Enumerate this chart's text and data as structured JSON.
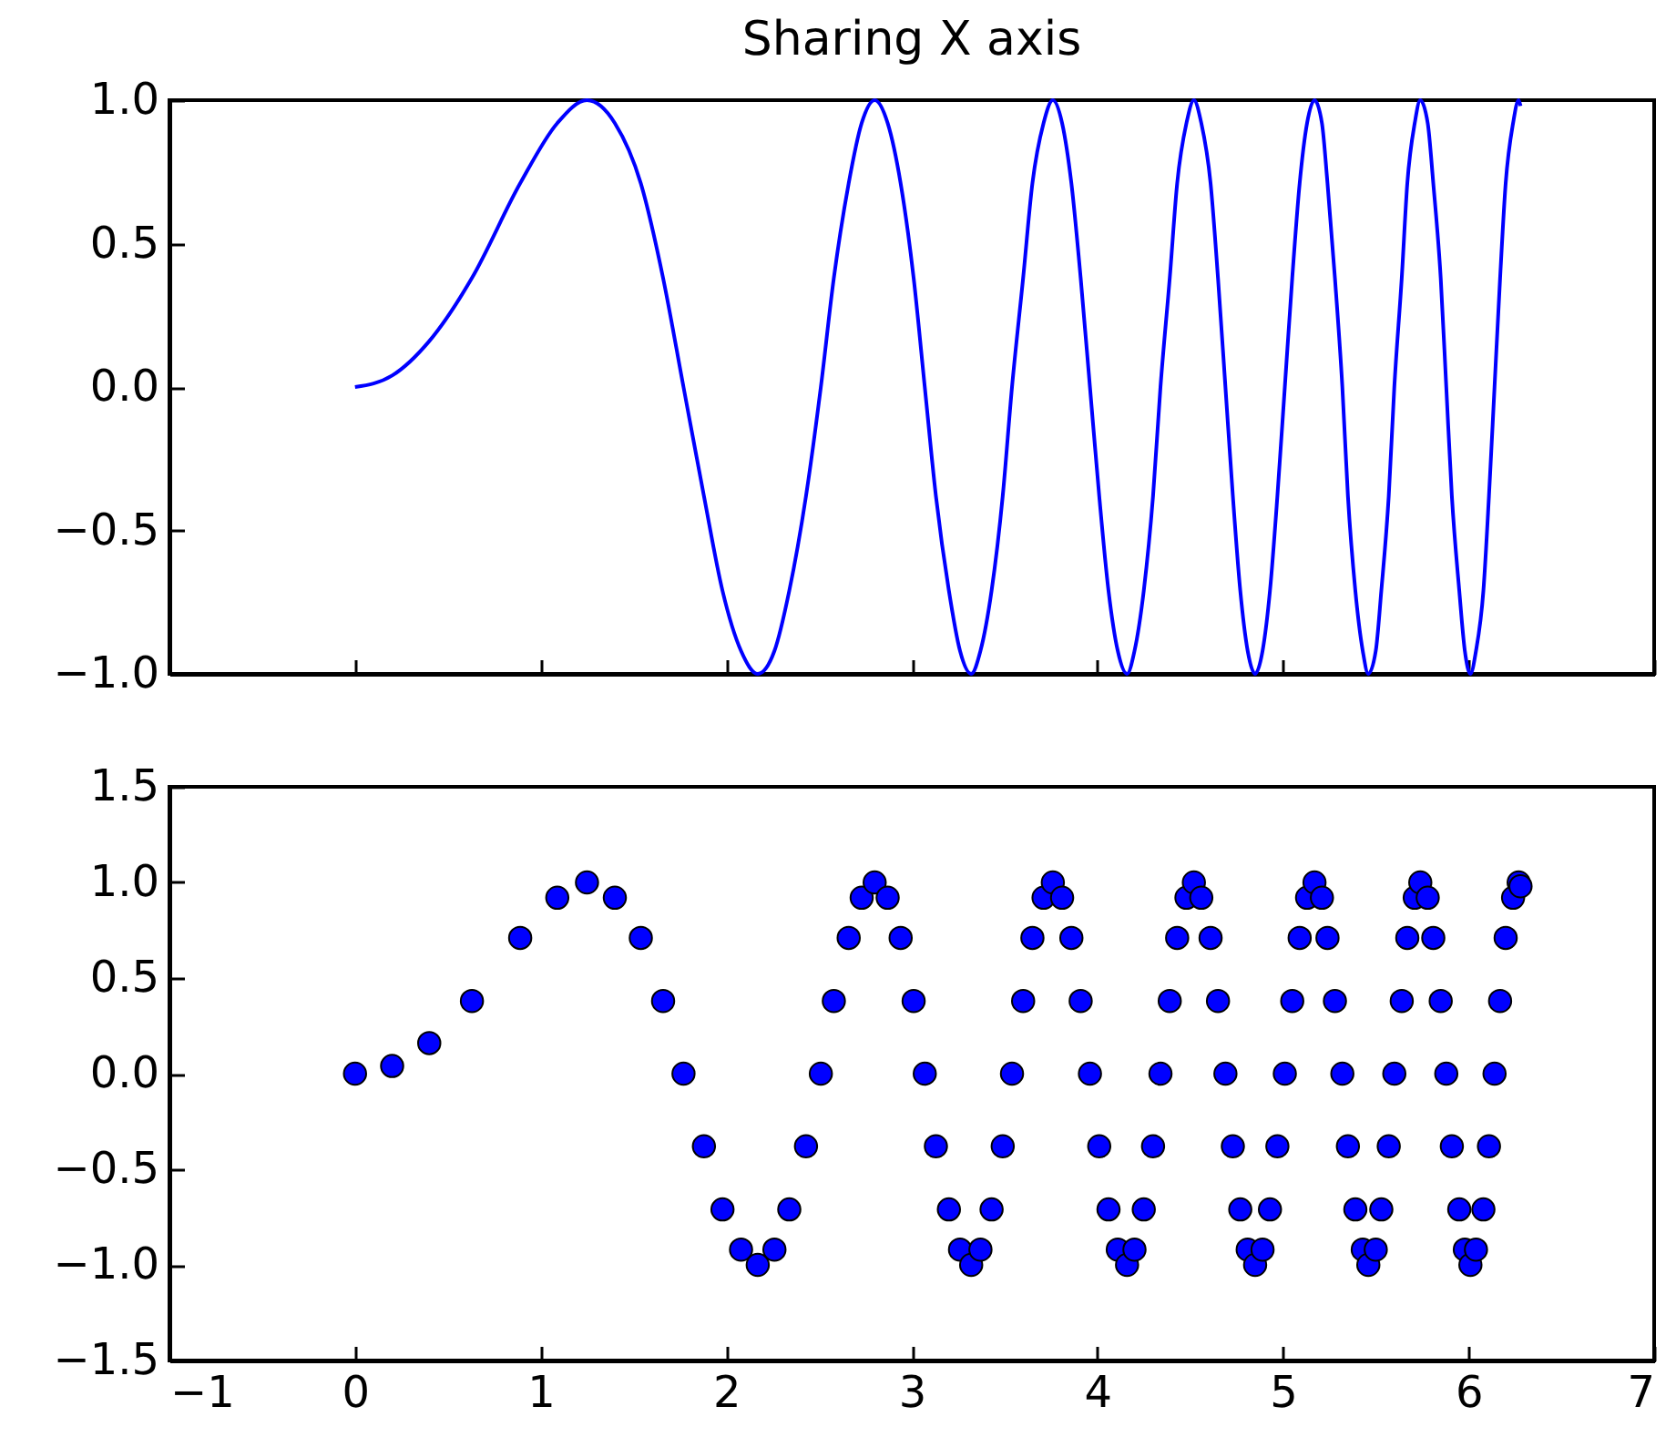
{
  "chart_data": [
    {
      "type": "line",
      "title": "Sharing X axis",
      "tick_labels": "y",
      "xlim": [
        -1,
        7
      ],
      "xticks": [
        -1,
        0,
        1,
        2,
        3,
        4,
        5,
        6,
        7
      ],
      "ylim": [
        -1,
        1
      ],
      "yticks": [
        {
          "value": -1,
          "label": "−1.0"
        },
        {
          "value": -0.5,
          "label": "−0.5"
        },
        {
          "value": 0,
          "label": "0.0"
        },
        {
          "value": 0.5,
          "label": "0.5"
        },
        {
          "value": 1,
          "label": "1.0"
        }
      ],
      "marker": "none",
      "line_style": "solid",
      "x": [
        0,
        0.2,
        0.4,
        0.63,
        0.89,
        1.09,
        1.25,
        1.4,
        1.54,
        1.66,
        1.77,
        1.88,
        1.98,
        2.08,
        2.17,
        2.26,
        2.34,
        2.43,
        2.51,
        2.58,
        2.66,
        2.73,
        2.8,
        2.87,
        2.94,
        3.01,
        3.07,
        3.13,
        3.2,
        3.26,
        3.32,
        3.37,
        3.43,
        3.49,
        3.54,
        3.6,
        3.65,
        3.71,
        3.76,
        3.81,
        3.86,
        3.91,
        3.96,
        4.01,
        4.06,
        4.11,
        4.16,
        4.2,
        4.25,
        4.3,
        4.34,
        4.39,
        4.43,
        4.48,
        4.52,
        4.56,
        4.61,
        4.65,
        4.69,
        4.73,
        4.77,
        4.81,
        4.85,
        4.89,
        4.93,
        4.97,
        5.01,
        5.05,
        5.09,
        5.13,
        5.17,
        5.21,
        5.24,
        5.28,
        5.32,
        5.35,
        5.39,
        5.43,
        5.46,
        5.5,
        5.53,
        5.57,
        5.6,
        5.64,
        5.67,
        5.71,
        5.74,
        5.78,
        5.81,
        5.85,
        5.88,
        5.91,
        5.95,
        5.98,
        6.01,
        6.04,
        6.08,
        6.11,
        6.14,
        6.17,
        6.2,
        6.24,
        6.27,
        6.28
      ],
      "series": [
        {
          "color": "#0000ff",
          "values": [
            0,
            0.04,
            0.16,
            0.38,
            0.71,
            0.92,
            1,
            0.92,
            0.71,
            0.38,
            0,
            -0.38,
            -0.71,
            -0.92,
            -1,
            -0.92,
            -0.71,
            -0.38,
            0,
            0.38,
            0.71,
            0.92,
            1,
            0.92,
            0.71,
            0.38,
            0,
            -0.38,
            -0.71,
            -0.92,
            -1,
            -0.92,
            -0.71,
            -0.38,
            0,
            0.38,
            0.71,
            0.92,
            1,
            0.92,
            0.71,
            0.38,
            0,
            -0.38,
            -0.71,
            -0.92,
            -1,
            -0.92,
            -0.71,
            -0.38,
            0,
            0.38,
            0.71,
            0.92,
            1,
            0.92,
            0.71,
            0.38,
            0,
            -0.38,
            -0.71,
            -0.92,
            -1,
            -0.92,
            -0.71,
            -0.38,
            0,
            0.38,
            0.71,
            0.92,
            1,
            0.92,
            0.71,
            0.38,
            0,
            -0.38,
            -0.71,
            -0.92,
            -1,
            -0.92,
            -0.71,
            -0.38,
            0,
            0.38,
            0.71,
            0.92,
            1,
            0.92,
            0.71,
            0.38,
            0,
            -0.38,
            -0.71,
            -0.92,
            -1,
            -0.92,
            -0.71,
            -0.38,
            0,
            0.38,
            0.71,
            0.92,
            1,
            0.98
          ]
        }
      ]
    },
    {
      "type": "scatter",
      "xlim": [
        -1,
        7
      ],
      "xticks": [
        {
          "value": -1,
          "label": "−1"
        },
        0,
        1,
        2,
        3,
        4,
        5,
        6,
        7
      ],
      "ylim": [
        -1.5,
        1.5
      ],
      "yticks": [
        {
          "value": -1.5,
          "label": "−1.5"
        },
        {
          "value": -1,
          "label": "−1.0"
        },
        {
          "value": -0.5,
          "label": "−0.5"
        },
        {
          "value": 0,
          "label": "0.0"
        },
        {
          "value": 0.5,
          "label": "0.5"
        },
        {
          "value": 1,
          "label": "1.0"
        },
        {
          "value": 1.5,
          "label": "1.5"
        }
      ],
      "marker": "circle",
      "x": [
        0,
        0.2,
        0.4,
        0.63,
        0.89,
        1.09,
        1.25,
        1.4,
        1.54,
        1.66,
        1.77,
        1.88,
        1.98,
        2.08,
        2.17,
        2.26,
        2.34,
        2.43,
        2.51,
        2.58,
        2.66,
        2.73,
        2.8,
        2.87,
        2.94,
        3.01,
        3.07,
        3.13,
        3.2,
        3.26,
        3.32,
        3.37,
        3.43,
        3.49,
        3.54,
        3.6,
        3.65,
        3.71,
        3.76,
        3.81,
        3.86,
        3.91,
        3.96,
        4.01,
        4.06,
        4.11,
        4.16,
        4.2,
        4.25,
        4.3,
        4.34,
        4.39,
        4.43,
        4.48,
        4.52,
        4.56,
        4.61,
        4.65,
        4.69,
        4.73,
        4.77,
        4.81,
        4.85,
        4.89,
        4.93,
        4.97,
        5.01,
        5.05,
        5.09,
        5.13,
        5.17,
        5.21,
        5.24,
        5.28,
        5.32,
        5.35,
        5.39,
        5.43,
        5.46,
        5.5,
        5.53,
        5.57,
        5.6,
        5.64,
        5.67,
        5.71,
        5.74,
        5.78,
        5.81,
        5.85,
        5.88,
        5.91,
        5.95,
        5.98,
        6.01,
        6.04,
        6.08,
        6.11,
        6.14,
        6.17,
        6.2,
        6.24,
        6.27,
        6.28
      ],
      "series": [
        {
          "color": "#0000ff",
          "values": [
            0,
            0.04,
            0.16,
            0.38,
            0.71,
            0.92,
            1,
            0.92,
            0.71,
            0.38,
            0,
            -0.38,
            -0.71,
            -0.92,
            -1,
            -0.92,
            -0.71,
            -0.38,
            0,
            0.38,
            0.71,
            0.92,
            1,
            0.92,
            0.71,
            0.38,
            0,
            -0.38,
            -0.71,
            -0.92,
            -1,
            -0.92,
            -0.71,
            -0.38,
            0,
            0.38,
            0.71,
            0.92,
            1,
            0.92,
            0.71,
            0.38,
            0,
            -0.38,
            -0.71,
            -0.92,
            -1,
            -0.92,
            -0.71,
            -0.38,
            0,
            0.38,
            0.71,
            0.92,
            1,
            0.92,
            0.71,
            0.38,
            0,
            -0.38,
            -0.71,
            -0.92,
            -1,
            -0.92,
            -0.71,
            -0.38,
            0,
            0.38,
            0.71,
            0.92,
            1,
            0.92,
            0.71,
            0.38,
            0,
            -0.38,
            -0.71,
            -0.92,
            -1,
            -0.92,
            -0.71,
            -0.38,
            0,
            0.38,
            0.71,
            0.92,
            1,
            0.92,
            0.71,
            0.38,
            0,
            -0.38,
            -0.71,
            -0.92,
            -1,
            -0.92,
            -0.71,
            -0.38,
            0,
            0.38,
            0.71,
            0.92,
            1,
            0.98
          ]
        }
      ]
    }
  ]
}
